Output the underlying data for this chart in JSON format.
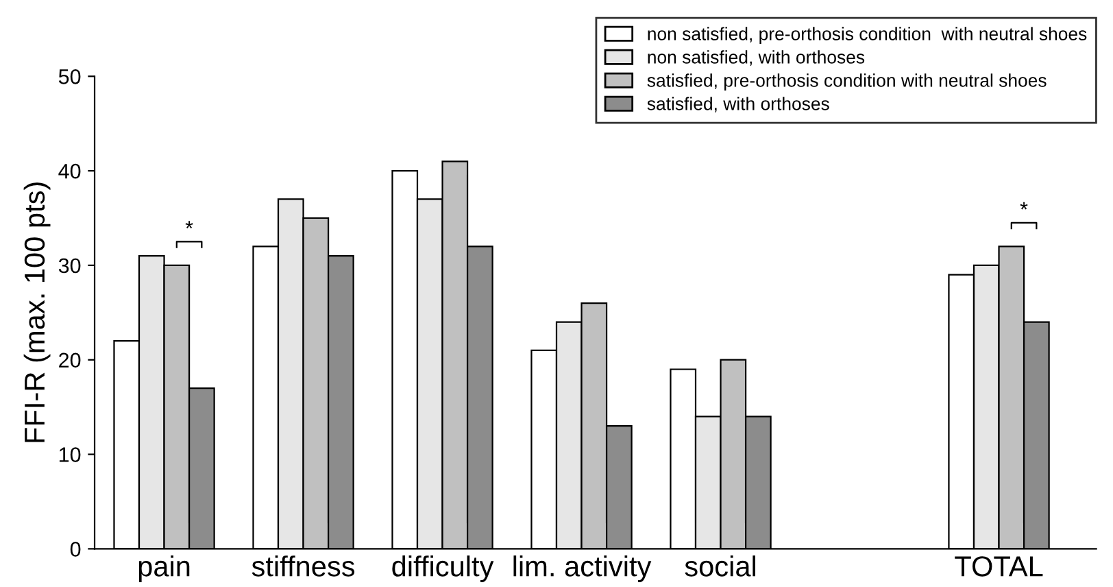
{
  "chart_data": {
    "type": "bar",
    "ylabel": "FFI-R (max. 100 pts)",
    "categories": [
      "pain",
      "stiffness",
      "difficulty",
      "lim. activity",
      "social",
      null,
      "TOTAL"
    ],
    "series": [
      {
        "name": "non satisfied, pre-orthosis condition  with neutral shoes",
        "color": "#ffffff",
        "values": [
          22,
          32,
          40,
          21,
          19,
          null,
          29
        ]
      },
      {
        "name": "non satisfied, with orthoses",
        "color": "#e6e6e6",
        "values": [
          31,
          37,
          37,
          24,
          14,
          null,
          30
        ]
      },
      {
        "name": "satisfied, pre-orthosis condition with neutral shoes",
        "color": "#c0c0c0",
        "values": [
          30,
          35,
          41,
          26,
          20,
          null,
          32
        ]
      },
      {
        "name": "satisfied, with orthoses",
        "color": "#8c8c8c",
        "values": [
          17,
          31,
          32,
          13,
          14,
          null,
          24
        ]
      }
    ],
    "ylim": [
      0,
      50
    ],
    "yticks": [
      0,
      10,
      20,
      30,
      40,
      50
    ],
    "grid": false,
    "legend": "top right",
    "annotations": [
      "*",
      "*"
    ]
  }
}
